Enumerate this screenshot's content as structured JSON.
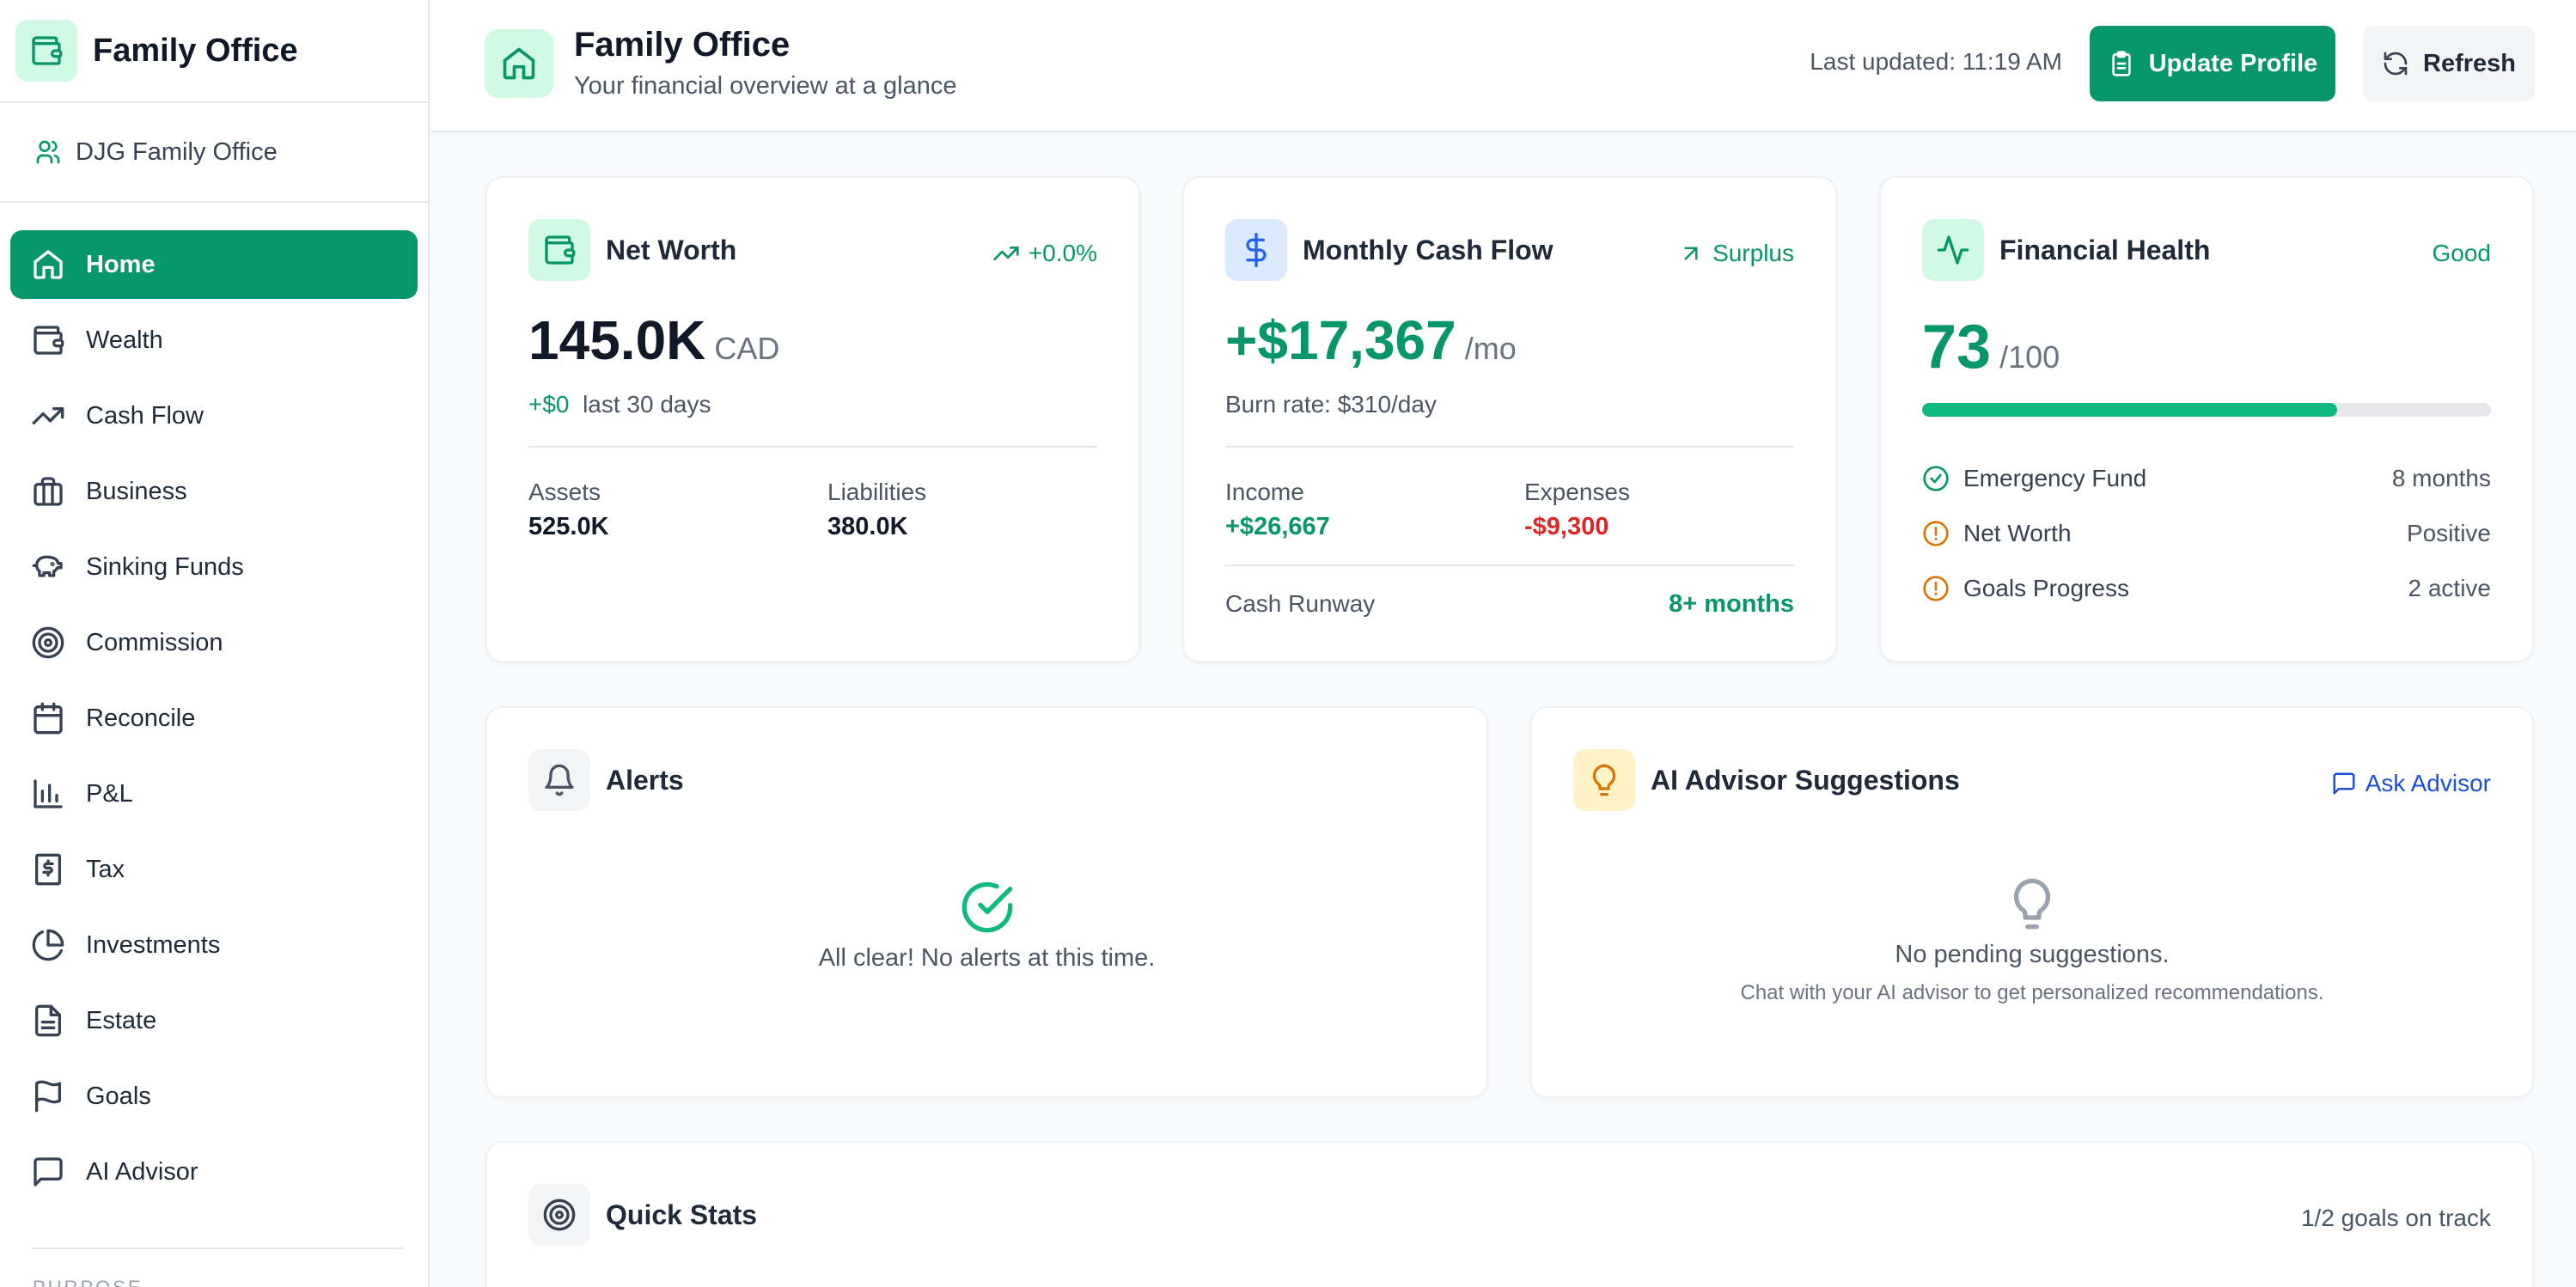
{
  "app": {
    "title": "Family Office",
    "organization": "DJG Family Office"
  },
  "sidebar": {
    "items": [
      {
        "label": "Home",
        "icon": "home-icon",
        "active": true
      },
      {
        "label": "Wealth",
        "icon": "wallet-icon"
      },
      {
        "label": "Cash Flow",
        "icon": "trending-up-icon"
      },
      {
        "label": "Business",
        "icon": "briefcase-icon"
      },
      {
        "label": "Sinking Funds",
        "icon": "piggy-bank-icon"
      },
      {
        "label": "Commission",
        "icon": "target-icon"
      },
      {
        "label": "Reconcile",
        "icon": "calendar-icon"
      },
      {
        "label": "P&L",
        "icon": "bar-chart-icon"
      },
      {
        "label": "Tax",
        "icon": "receipt-icon"
      },
      {
        "label": "Investments",
        "icon": "pie-chart-icon"
      },
      {
        "label": "Estate",
        "icon": "document-icon"
      },
      {
        "label": "Goals",
        "icon": "flag-icon"
      },
      {
        "label": "AI Advisor",
        "icon": "chat-icon"
      }
    ],
    "section_label": "PURPOSE"
  },
  "header": {
    "title": "Family Office",
    "subtitle": "Your financial overview at a glance",
    "last_updated": "Last updated: 11:19 AM",
    "update_profile_label": "Update Profile",
    "refresh_label": "Refresh"
  },
  "net_worth": {
    "title": "Net Worth",
    "change": "+0.0%",
    "value": "145.0K",
    "currency": "CAD",
    "delta": "+$0",
    "delta_period": "last 30 days",
    "assets_label": "Assets",
    "assets_value": "525.0K",
    "liabilities_label": "Liabilities",
    "liabilities_value": "380.0K"
  },
  "cash_flow": {
    "title": "Monthly Cash Flow",
    "status": "Surplus",
    "value": "+$17,367",
    "unit": "/mo",
    "burn_rate": "Burn rate: $310/day",
    "income_label": "Income",
    "income_value": "+$26,667",
    "expenses_label": "Expenses",
    "expenses_value": "-$9,300",
    "runway_label": "Cash Runway",
    "runway_value": "8+ months"
  },
  "financial_health": {
    "title": "Financial Health",
    "status": "Good",
    "score": "73",
    "max": "/100",
    "score_fraction": 0.73,
    "items": [
      {
        "label": "Emergency Fund",
        "value": "8 months",
        "icon": "check-circle-icon"
      },
      {
        "label": "Net Worth",
        "value": "Positive",
        "icon": "alert-circle-icon"
      },
      {
        "label": "Goals Progress",
        "value": "2 active",
        "icon": "alert-circle-icon"
      }
    ]
  },
  "alerts": {
    "title": "Alerts",
    "empty_text": "All clear! No alerts at this time."
  },
  "advisor": {
    "title": "AI Advisor Suggestions",
    "ask_label": "Ask Advisor",
    "empty_text": "No pending suggestions.",
    "empty_sub": "Chat with your AI advisor to get personalized recommendations."
  },
  "quick_stats": {
    "title": "Quick Stats",
    "goals_status": "1/2 goals on track"
  },
  "colors": {
    "brand": "#079669",
    "brand_light": "#d1fae5",
    "danger": "#dc2626",
    "warning": "#d97706",
    "advisor_blue": "#1d4ed8"
  }
}
